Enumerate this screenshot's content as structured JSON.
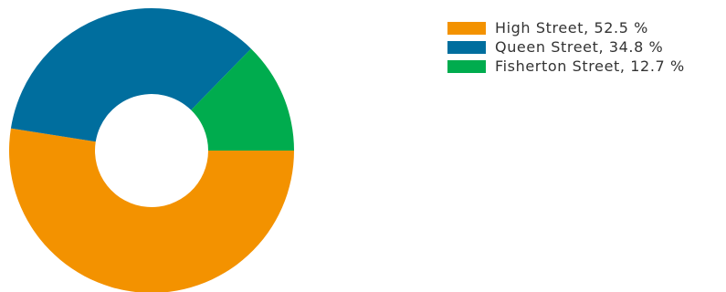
{
  "chart_data": {
    "type": "pie",
    "variant": "donut",
    "title": "",
    "categories": [
      "High Street",
      "Queen Street",
      "Fisherton Street"
    ],
    "values": [
      52.5,
      34.8,
      12.7
    ],
    "unit": "%",
    "colors": [
      "#f39200",
      "#006e9e",
      "#00ac4e"
    ],
    "legend": {
      "placement": "top-right",
      "entries": [
        {
          "label": "High Street, 52.5 %",
          "color": "#f39200"
        },
        {
          "label": "Queen Street, 34.8 %",
          "color": "#006e9e"
        },
        {
          "label": "Fisherton Street, 12.7 %",
          "color": "#00ac4e"
        }
      ]
    }
  }
}
